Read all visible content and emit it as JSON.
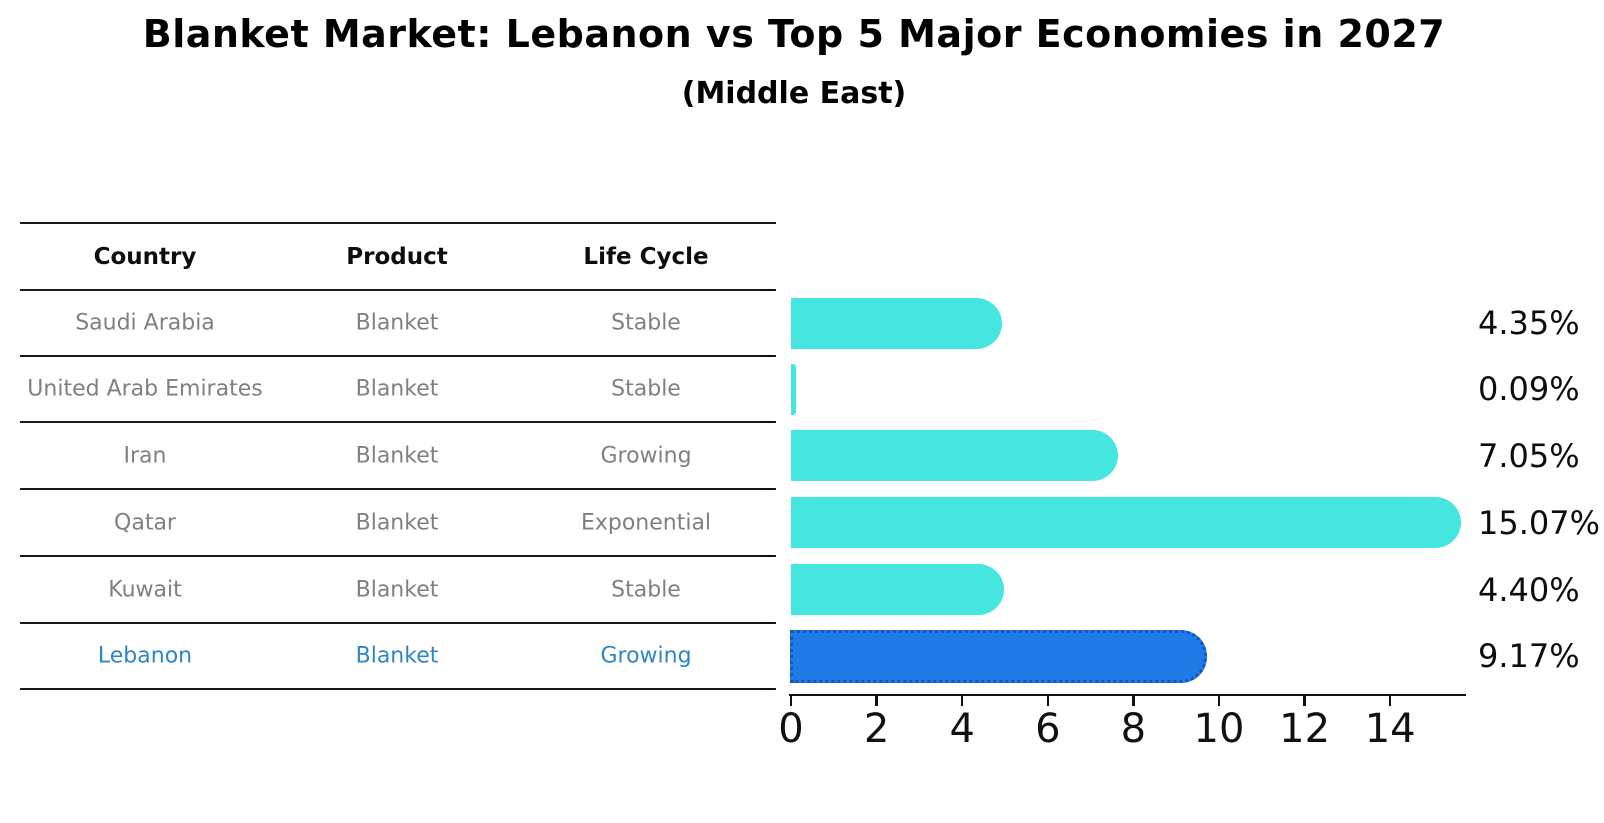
{
  "title": "Blanket Market: Lebanon vs Top 5 Major Economies in 2027",
  "subtitle": "(Middle East)",
  "table": {
    "headers": [
      "Country",
      "Product",
      "Life Cycle"
    ],
    "rows": [
      {
        "country": "Saudi Arabia",
        "product": "Blanket",
        "life_cycle": "Stable",
        "highlight": false
      },
      {
        "country": "United Arab Emirates",
        "product": "Blanket",
        "life_cycle": "Stable",
        "highlight": false
      },
      {
        "country": "Iran",
        "product": "Blanket",
        "life_cycle": "Growing",
        "highlight": false
      },
      {
        "country": "Qatar",
        "product": "Blanket",
        "life_cycle": "Exponential",
        "highlight": false
      },
      {
        "country": "Kuwait",
        "product": "Blanket",
        "life_cycle": "Stable",
        "highlight": false
      },
      {
        "country": "Lebanon",
        "product": "Blanket",
        "life_cycle": "Growing",
        "highlight": true
      }
    ]
  },
  "chart_data": {
    "type": "bar",
    "orientation": "horizontal",
    "title": "Blanket Market: Lebanon vs Top 5 Major Economies in 2027",
    "subtitle": "(Middle East)",
    "categories": [
      "Saudi Arabia",
      "United Arab Emirates",
      "Iran",
      "Qatar",
      "Kuwait",
      "Lebanon"
    ],
    "values": [
      4.35,
      0.09,
      7.05,
      15.07,
      4.4,
      9.17
    ],
    "value_labels": [
      "4.35%",
      "0.09%",
      "7.05%",
      "15.07%",
      "4.40%",
      "9.17%"
    ],
    "x_ticks": [
      0,
      2,
      4,
      6,
      8,
      10,
      12,
      14
    ],
    "xlim": [
      0,
      15.82
    ],
    "xlabel": "",
    "ylabel": "",
    "grid": false,
    "legend": false,
    "bar_color": "#45E6E0",
    "highlight_index": 5,
    "highlight_bar_color": "#1F7AE6",
    "highlight_border_color": "#1256BE",
    "highlight_text_color": "#2E86C8",
    "row_text_color": "#808080"
  },
  "colors": {
    "background": "#FFFFFF",
    "axis": "#111111",
    "table_line": "#1A1A1A"
  }
}
